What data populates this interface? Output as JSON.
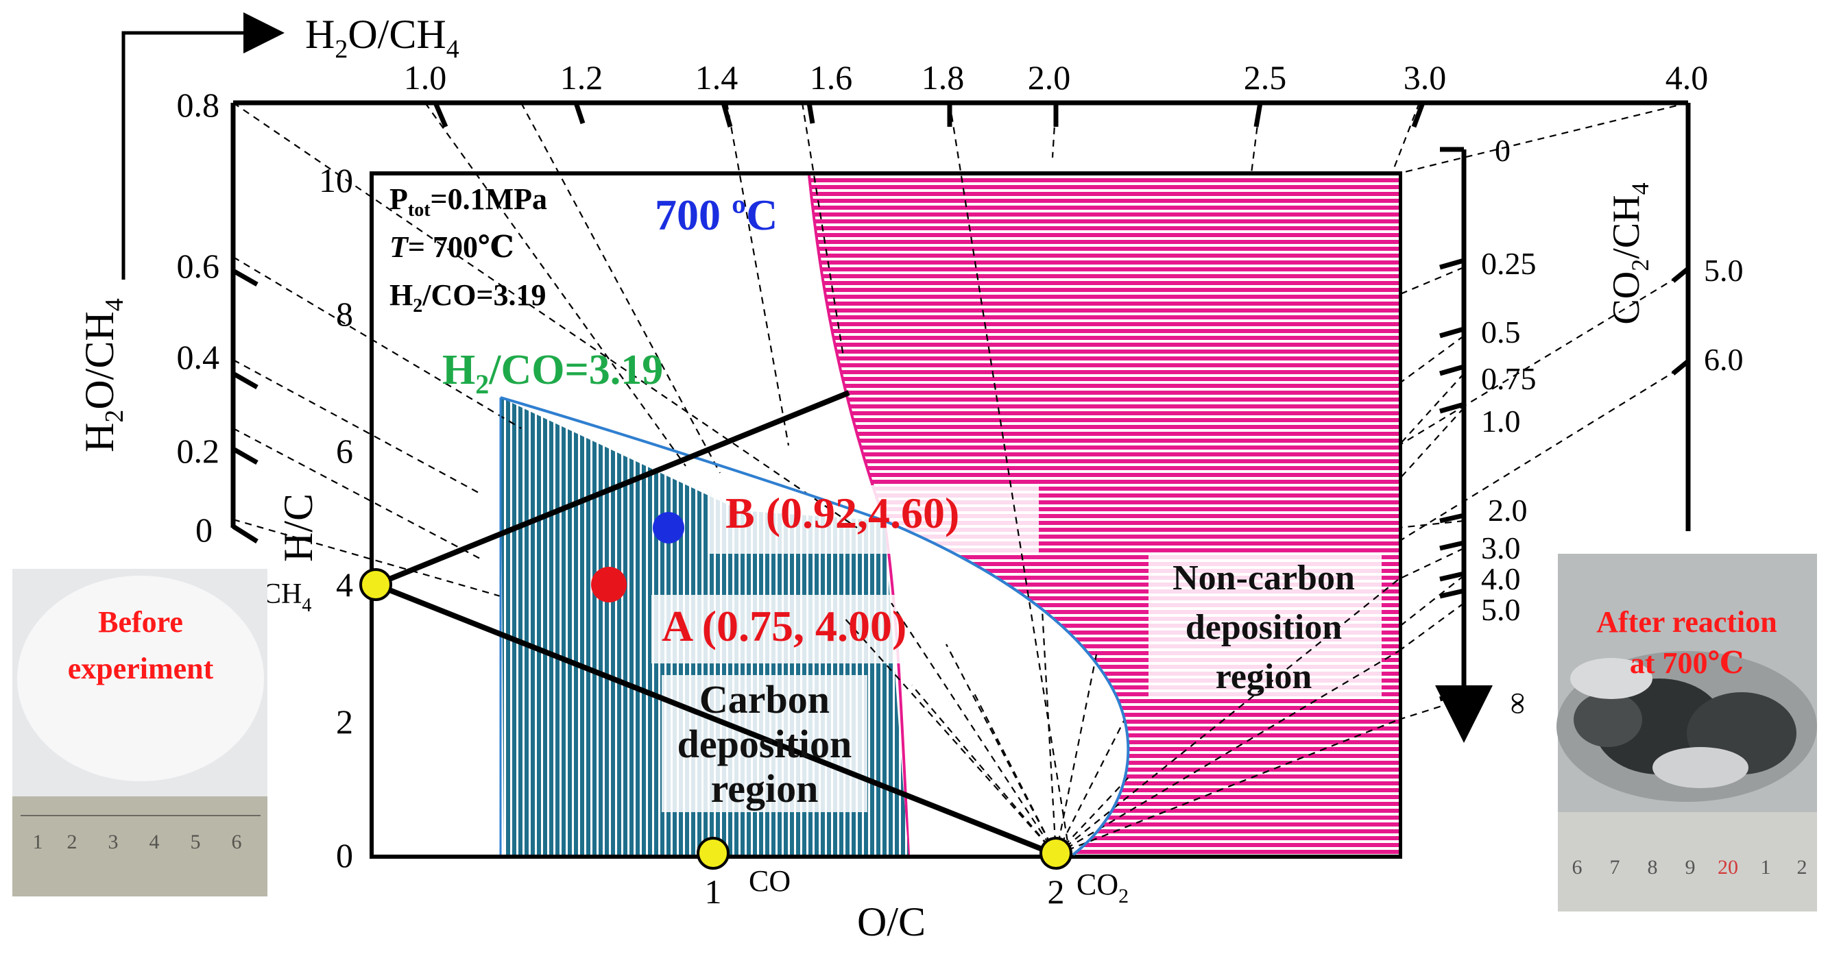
{
  "top_axis": {
    "label_base": "H",
    "label_sub": "2",
    "label_mid": "O/CH",
    "label_sub2": "4",
    "ticks": [
      "1.0",
      "1.2",
      "1.4",
      "1.6",
      "1.8",
      "2.0",
      "2.5",
      "3.0",
      "4.0"
    ]
  },
  "left_axis": {
    "label_base": "H",
    "label_sub": "2",
    "label_mid": "O/CH",
    "label_sub2": "4",
    "ticks": [
      "0.8",
      "0.6",
      "0.4",
      "0.2",
      "0"
    ]
  },
  "right_axis": {
    "label_base": "CO",
    "label_sub": "2",
    "label_mid": "/CH",
    "label_sub2": "4",
    "inner_ticks": [
      "0",
      "0.25",
      "0.5",
      "0.75",
      "1.0",
      "2.0",
      "3.0",
      "4.0",
      "5.0",
      "∞"
    ],
    "outer_ticks": [
      "5.0",
      "6.0"
    ]
  },
  "plot": {
    "y_label": "H/C",
    "x_label": "O/C",
    "y_ticks": [
      "10",
      "8",
      "6",
      "4",
      "2",
      "0"
    ],
    "x_ticks": [
      "1",
      "2"
    ],
    "vertex_ch4": "CH",
    "vertex_ch4_sub": "4",
    "vertex_co": "CO",
    "vertex_co2": "CO",
    "vertex_co2_sub": "2"
  },
  "conditions": {
    "p_base": "P",
    "p_sub": "tot",
    "p_val": "=0.1MPa",
    "t_line": "T",
    "t_val": "= 700℃",
    "h2co_base": "H",
    "h2co_sub": "2",
    "h2co_val": "/CO=3.19"
  },
  "labels": {
    "temp": "700 ºC",
    "h2co_line": "H",
    "h2co_line_sub": "2",
    "h2co_line_val": "/CO=3.19",
    "point_b": "B (0.92,4.60)",
    "point_a": "A (0.75, 4.00)",
    "carbon_region": [
      "Carbon",
      "deposition",
      "region"
    ],
    "non_carbon_region": [
      "Non-carbon",
      "deposition",
      "region"
    ]
  },
  "photos": {
    "before": [
      "Before",
      "experiment"
    ],
    "after": [
      "After reaction",
      "at 700℃"
    ],
    "ruler_before": [
      "1",
      "2",
      "3",
      "4",
      "5",
      "6"
    ],
    "ruler_after": [
      "6",
      "7",
      "8",
      "9",
      "20",
      "1",
      "2"
    ]
  },
  "colors": {
    "carbon_fill": "#1f6f8b",
    "non_carbon_fill": "#e6198c",
    "boundary_blue": "#2f7fd0",
    "point_a": "#e8141c",
    "point_b": "#1a2ee0",
    "vertex": "#f2ec1a",
    "h2co_green": "#1faa4a",
    "temp_blue": "#1a2ee0",
    "red_text": "#ff1a1a"
  }
}
